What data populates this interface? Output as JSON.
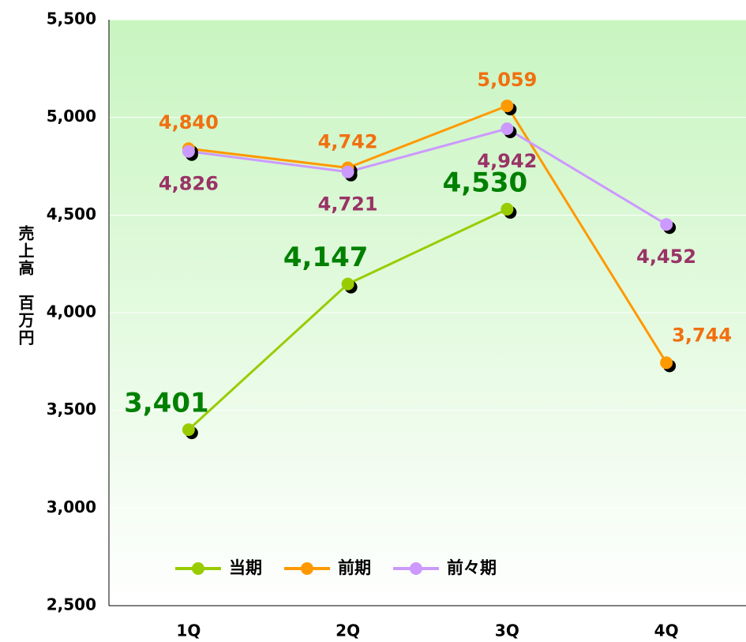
{
  "chart_data": {
    "type": "line",
    "y_label": "売上高　百万円",
    "categories": [
      "1Q",
      "2Q",
      "3Q",
      "4Q"
    ],
    "series": [
      {
        "name": "当期",
        "color": "#99cc00",
        "label_color": "#008000",
        "values": [
          3401,
          4147,
          4530,
          null
        ],
        "value_labels": [
          "3,401",
          "4,147",
          "4,530",
          null
        ]
      },
      {
        "name": "前期",
        "color": "#ff9900",
        "label_color": "#f07010",
        "values": [
          4840,
          4742,
          5059,
          3744
        ],
        "value_labels": [
          "4,840",
          "4,742",
          "5,059",
          "3,744"
        ]
      },
      {
        "name": "前々期",
        "color": "#cc99ff",
        "label_color": "#993366",
        "values": [
          4826,
          4721,
          4942,
          4452
        ],
        "value_labels": [
          "4,826",
          "4,721",
          "4,942",
          "4,452"
        ]
      }
    ],
    "ylim": [
      2500,
      5500
    ],
    "yticks": [
      {
        "value": 2500,
        "label": "2,500"
      },
      {
        "value": 3000,
        "label": "3,000"
      },
      {
        "value": 3500,
        "label": "3,500"
      },
      {
        "value": 4000,
        "label": "4,000"
      },
      {
        "value": 4500,
        "label": "4,500"
      },
      {
        "value": 5000,
        "label": "5,000"
      },
      {
        "value": 5500,
        "label": "5,500"
      }
    ],
    "grid": true
  }
}
